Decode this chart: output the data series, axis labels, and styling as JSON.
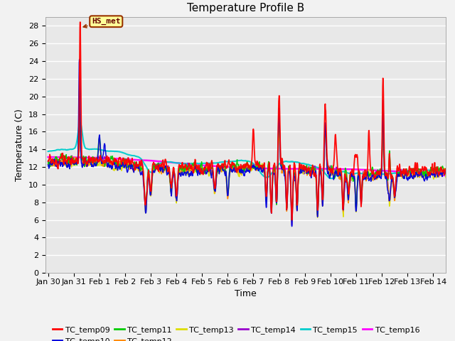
{
  "title": "Temperature Profile B",
  "xlabel": "Time",
  "ylabel": "Temperature (C)",
  "ylim": [
    0,
    29
  ],
  "yticks": [
    0,
    2,
    4,
    6,
    8,
    10,
    12,
    14,
    16,
    18,
    20,
    22,
    24,
    26,
    28
  ],
  "xtick_labels": [
    "Jan 30",
    "Jan 31",
    "Feb 1",
    "Feb 2",
    "Feb 3",
    "Feb 4",
    "Feb 5",
    "Feb 6",
    "Feb 7",
    "Feb 8",
    "Feb 9",
    "Feb 10",
    "Feb 11",
    "Feb 12",
    "Feb 13",
    "Feb 14"
  ],
  "annotation": "HS_met",
  "series_colors": {
    "TC_temp09": "#ff0000",
    "TC_temp10": "#0000dd",
    "TC_temp11": "#00cc00",
    "TC_temp12": "#ff8800",
    "TC_temp13": "#dddd00",
    "TC_temp14": "#9900cc",
    "TC_temp15": "#00cccc",
    "TC_temp16": "#ff00ff"
  },
  "plot_bg": "#e8e8e8",
  "fig_bg": "#f2f2f2",
  "title_fontsize": 11,
  "axis_fontsize": 9,
  "tick_fontsize": 8,
  "legend_fontsize": 8
}
